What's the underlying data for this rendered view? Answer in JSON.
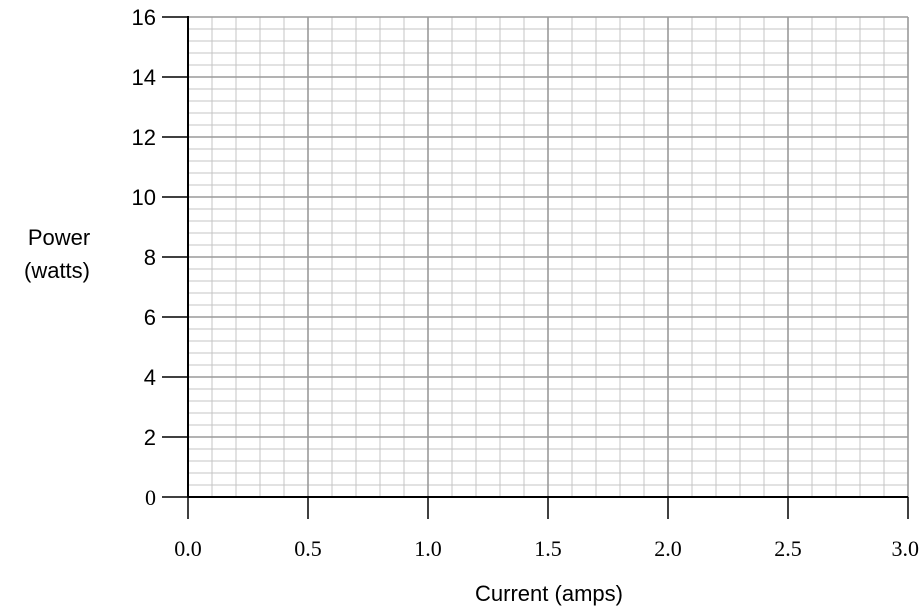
{
  "chart_data": {
    "type": "line",
    "title": "",
    "xlabel": "Current (amps)",
    "ylabel_lines": [
      "Power",
      "(watts)"
    ],
    "xlim": [
      0,
      3.0
    ],
    "ylim": [
      0,
      16
    ],
    "x_ticks": [
      0.0,
      0.5,
      1.0,
      1.5,
      2.0,
      2.5,
      3.0
    ],
    "x_tick_labels": [
      "0.0",
      "0.5",
      "1.0",
      "1.5",
      "2.0",
      "2.5",
      "3.0"
    ],
    "y_ticks": [
      0,
      2,
      4,
      6,
      8,
      10,
      12,
      14,
      16
    ],
    "y_tick_labels": [
      "0",
      "2",
      "4",
      "6",
      "8",
      "10",
      "12",
      "14",
      "16"
    ],
    "x_minor_step": 0.1,
    "y_minor_step": 0.4,
    "grid": true,
    "series": [],
    "colors": {
      "major_grid": "#9a9a9a",
      "minor_grid": "#c4c4c4",
      "axis": "#000000"
    }
  }
}
